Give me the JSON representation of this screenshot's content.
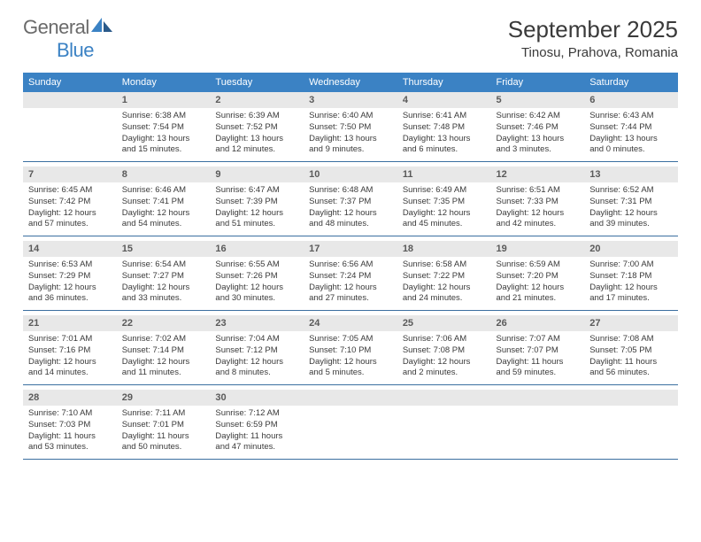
{
  "logo": {
    "text1": "General",
    "text2": "Blue"
  },
  "title": "September 2025",
  "location": "Tinosu, Prahova, Romania",
  "colors": {
    "header_bg": "#3b82c4",
    "header_text": "#ffffff",
    "daynum_bg": "#e8e8e8",
    "daynum_text": "#5a5a5a",
    "body_text": "#3a3a3a",
    "divider": "#3b6fa0",
    "logo_gray": "#6a6a6a",
    "logo_blue": "#3b82c4"
  },
  "weekdays": [
    "Sunday",
    "Monday",
    "Tuesday",
    "Wednesday",
    "Thursday",
    "Friday",
    "Saturday"
  ],
  "labels": {
    "sunrise": "Sunrise:",
    "sunset": "Sunset:",
    "daylight": "Daylight:"
  },
  "start_offset": 1,
  "days": [
    {
      "n": 1,
      "sunrise": "6:38 AM",
      "sunset": "7:54 PM",
      "daylight": "13 hours and 15 minutes."
    },
    {
      "n": 2,
      "sunrise": "6:39 AM",
      "sunset": "7:52 PM",
      "daylight": "13 hours and 12 minutes."
    },
    {
      "n": 3,
      "sunrise": "6:40 AM",
      "sunset": "7:50 PM",
      "daylight": "13 hours and 9 minutes."
    },
    {
      "n": 4,
      "sunrise": "6:41 AM",
      "sunset": "7:48 PM",
      "daylight": "13 hours and 6 minutes."
    },
    {
      "n": 5,
      "sunrise": "6:42 AM",
      "sunset": "7:46 PM",
      "daylight": "13 hours and 3 minutes."
    },
    {
      "n": 6,
      "sunrise": "6:43 AM",
      "sunset": "7:44 PM",
      "daylight": "13 hours and 0 minutes."
    },
    {
      "n": 7,
      "sunrise": "6:45 AM",
      "sunset": "7:42 PM",
      "daylight": "12 hours and 57 minutes."
    },
    {
      "n": 8,
      "sunrise": "6:46 AM",
      "sunset": "7:41 PM",
      "daylight": "12 hours and 54 minutes."
    },
    {
      "n": 9,
      "sunrise": "6:47 AM",
      "sunset": "7:39 PM",
      "daylight": "12 hours and 51 minutes."
    },
    {
      "n": 10,
      "sunrise": "6:48 AM",
      "sunset": "7:37 PM",
      "daylight": "12 hours and 48 minutes."
    },
    {
      "n": 11,
      "sunrise": "6:49 AM",
      "sunset": "7:35 PM",
      "daylight": "12 hours and 45 minutes."
    },
    {
      "n": 12,
      "sunrise": "6:51 AM",
      "sunset": "7:33 PM",
      "daylight": "12 hours and 42 minutes."
    },
    {
      "n": 13,
      "sunrise": "6:52 AM",
      "sunset": "7:31 PM",
      "daylight": "12 hours and 39 minutes."
    },
    {
      "n": 14,
      "sunrise": "6:53 AM",
      "sunset": "7:29 PM",
      "daylight": "12 hours and 36 minutes."
    },
    {
      "n": 15,
      "sunrise": "6:54 AM",
      "sunset": "7:27 PM",
      "daylight": "12 hours and 33 minutes."
    },
    {
      "n": 16,
      "sunrise": "6:55 AM",
      "sunset": "7:26 PM",
      "daylight": "12 hours and 30 minutes."
    },
    {
      "n": 17,
      "sunrise": "6:56 AM",
      "sunset": "7:24 PM",
      "daylight": "12 hours and 27 minutes."
    },
    {
      "n": 18,
      "sunrise": "6:58 AM",
      "sunset": "7:22 PM",
      "daylight": "12 hours and 24 minutes."
    },
    {
      "n": 19,
      "sunrise": "6:59 AM",
      "sunset": "7:20 PM",
      "daylight": "12 hours and 21 minutes."
    },
    {
      "n": 20,
      "sunrise": "7:00 AM",
      "sunset": "7:18 PM",
      "daylight": "12 hours and 17 minutes."
    },
    {
      "n": 21,
      "sunrise": "7:01 AM",
      "sunset": "7:16 PM",
      "daylight": "12 hours and 14 minutes."
    },
    {
      "n": 22,
      "sunrise": "7:02 AM",
      "sunset": "7:14 PM",
      "daylight": "12 hours and 11 minutes."
    },
    {
      "n": 23,
      "sunrise": "7:04 AM",
      "sunset": "7:12 PM",
      "daylight": "12 hours and 8 minutes."
    },
    {
      "n": 24,
      "sunrise": "7:05 AM",
      "sunset": "7:10 PM",
      "daylight": "12 hours and 5 minutes."
    },
    {
      "n": 25,
      "sunrise": "7:06 AM",
      "sunset": "7:08 PM",
      "daylight": "12 hours and 2 minutes."
    },
    {
      "n": 26,
      "sunrise": "7:07 AM",
      "sunset": "7:07 PM",
      "daylight": "11 hours and 59 minutes."
    },
    {
      "n": 27,
      "sunrise": "7:08 AM",
      "sunset": "7:05 PM",
      "daylight": "11 hours and 56 minutes."
    },
    {
      "n": 28,
      "sunrise": "7:10 AM",
      "sunset": "7:03 PM",
      "daylight": "11 hours and 53 minutes."
    },
    {
      "n": 29,
      "sunrise": "7:11 AM",
      "sunset": "7:01 PM",
      "daylight": "11 hours and 50 minutes."
    },
    {
      "n": 30,
      "sunrise": "7:12 AM",
      "sunset": "6:59 PM",
      "daylight": "11 hours and 47 minutes."
    }
  ]
}
